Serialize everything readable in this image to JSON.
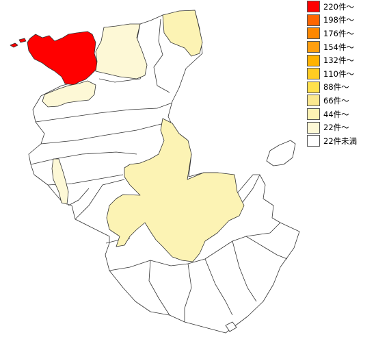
{
  "legend": {
    "items": [
      {
        "label": "220件～",
        "color": "#ff0000"
      },
      {
        "label": "198件～",
        "color": "#ff6600"
      },
      {
        "label": "176件～",
        "color": "#ff8800"
      },
      {
        "label": "154件～",
        "color": "#ff9f10"
      },
      {
        "label": "132件～",
        "color": "#ffb300"
      },
      {
        "label": "110件～",
        "color": "#ffcc22"
      },
      {
        "label": "88件～",
        "color": "#ffe14d"
      },
      {
        "label": "66件～",
        "color": "#fbe88f"
      },
      {
        "label": "44件～",
        "color": "#fcf3b4"
      },
      {
        "label": "22件～",
        "color": "#fdf8d6"
      },
      {
        "label": "22件未満",
        "color": "#ffffff"
      }
    ]
  },
  "map": {
    "regions": [
      {
        "name": "northwest-peak-municipality",
        "fill_level": "220件～",
        "color": "#ff0000"
      },
      {
        "name": "northwest-islet",
        "fill_level": "220件～",
        "color": "#ff0000"
      },
      {
        "name": "north-central-municipality",
        "fill_level": "22件～",
        "color": "#fdf8d6"
      },
      {
        "name": "northeast-municipality",
        "fill_level": "44件～",
        "color": "#fcf3b4"
      },
      {
        "name": "west-coast-strip",
        "fill_level": "22件～",
        "color": "#fdf8d6"
      },
      {
        "name": "west-coast-small-municipality",
        "fill_level": "22件～",
        "color": "#fdf8d6"
      },
      {
        "name": "central-large-municipality",
        "fill_level": "44件～",
        "color": "#fcf3b4"
      },
      {
        "name": "other-municipalities",
        "fill_level": "22件未満",
        "color": "#ffffff"
      }
    ]
  }
}
